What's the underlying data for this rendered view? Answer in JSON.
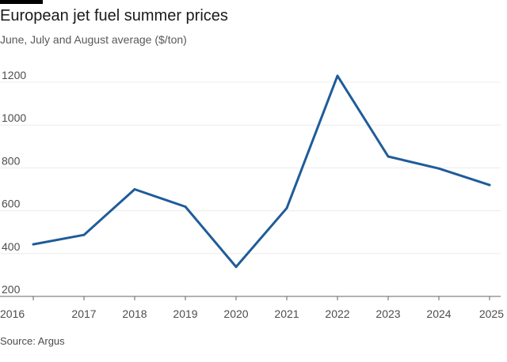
{
  "header": {
    "title": "European jet fuel summer prices",
    "subtitle": "June, July and August average ($/ton)"
  },
  "footer": {
    "source": "Source: Argus"
  },
  "colors": {
    "line": "#1f5c99",
    "grid": "#ececec",
    "axis": "#666666"
  },
  "chart_data": {
    "type": "line",
    "title": "European jet fuel summer prices",
    "subtitle": "June, July and August average ($/ton)",
    "xlabel": "",
    "ylabel": "",
    "x": [
      "2016",
      "2017",
      "2018",
      "2019",
      "2020",
      "2021",
      "2022",
      "2023",
      "2024",
      "2025"
    ],
    "series": [
      {
        "values": [
          443,
          487,
          700,
          619,
          338,
          612,
          1230,
          853,
          797,
          720
        ]
      }
    ],
    "yticks": [
      200,
      400,
      600,
      800,
      1000,
      1200
    ],
    "ylim": [
      200,
      1250
    ],
    "grid": true,
    "legend": "none"
  }
}
